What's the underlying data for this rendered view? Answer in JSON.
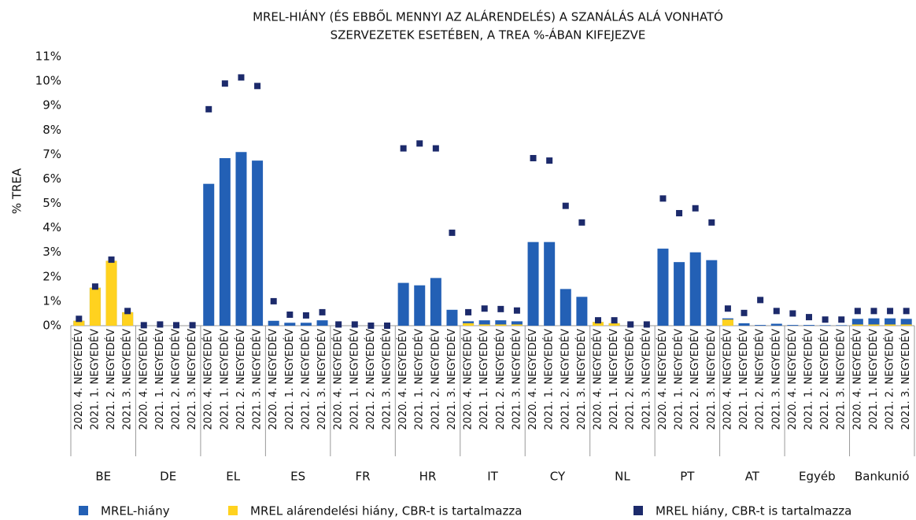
{
  "chart_data": {
    "type": "bar",
    "title": [
      "MREL-HIÁNY (ÉS EBBŐL MENNYI AZ ALÁRENDELÉS) A SZANÁLÁS ALÁ VONHATÓ",
      "SZERVEZETEK ESETÉBEN, A TREA %-ÁBAN KIFEJEZVE"
    ],
    "ylabel": "% TREA",
    "groups": [
      "BE",
      "DE",
      "EL",
      "ES",
      "FR",
      "HR",
      "IT",
      "CY",
      "NL",
      "PT",
      "AT",
      "Egyéb",
      "Bankunió"
    ],
    "categories": [
      "2020. 4. NEGYEDÉV",
      "2021. 1. NEGYEDÉV",
      "2021. 2. NEGYEDÉV",
      "2021. 3. NEGYEDÉV",
      "2020. 4. NEGYEDÉV",
      "2021. 1. NEGYEDÉV",
      "2021. 2. NEGYEDÉV",
      "2021. 3. NEGYEDÉV",
      "2020. 4. NEGYEDÉV",
      "2021. 1. NEGYEDÉV",
      "2021. 2. NEGYEDÉV",
      "2021. 3. NEGYEDÉV",
      "2020. 4. NEGYEDÉV",
      "2021. 1. NEGYEDÉV",
      "2021. 2. NEGYEDÉV",
      "2021. 3. NEGYEDÉV",
      "2020. 4. NEGYEDÉV",
      "2021. 1. NEGYEDÉV",
      "2021. 2. NEGYEDÉV",
      "2021. 3. NEGYEDÉV",
      "2020. 4. NEGYEDÉV",
      "2021. 1. NEGYEDÉV",
      "2021. 2. NEGYEDÉV",
      "2021. 3. NEGYEDÉV",
      "2020. 4. NEGYEDÉV",
      "2021. 1. NEGYEDÉV",
      "2021. 2. NEGYEDÉV",
      "2021. 3. NEGYEDÉV",
      "2020. 4. NEGYEDÉV",
      "2021. 1. NEGYEDÉV",
      "2021. 2. NEGYEDÉV",
      "2021. 3. NEGYEDÉV",
      "2020. 4. NEGYEDÉV",
      "2021. 1. NEGYEDÉV",
      "2021. 2. NEGYEDÉV",
      "2021. 3. NEGYEDÉV",
      "2020. 4. NEGYEDÉV",
      "2021. 1. NEGYEDÉV",
      "2021. 2. NEGYEDÉV",
      "2021. 3. NEGYEDÉV",
      "2020. 4. NEGYEDÉV",
      "2021. 1. NEGYEDÉV",
      "2021. 2. NEGYEDÉV",
      "2021. 3. NEGYEDÉV",
      "2020. 4. NEGYEDÉV",
      "2021. 1. NEGYEDÉV",
      "2021. 2. NEGYEDÉV",
      "2021. 3. NEGYEDÉV",
      "2020. 4. NEGYEDÉV",
      "2021. 1. NEGYEDÉV",
      "2021. 2. NEGYEDÉV",
      "2021. 3. NEGYEDÉV"
    ],
    "series": [
      {
        "name": "MREL-hiány",
        "color": "#2360b5",
        "mark": "bar",
        "values": [
          0.2,
          1.55,
          2.65,
          0.55,
          0,
          0,
          0,
          0,
          5.8,
          6.85,
          7.1,
          6.75,
          0.2,
          0.12,
          0.12,
          0.22,
          0,
          0,
          0,
          0,
          1.75,
          1.65,
          1.95,
          0.65,
          0.18,
          0.22,
          0.22,
          0.18,
          3.42,
          3.42,
          1.5,
          1.18,
          0.15,
          0.1,
          0,
          0,
          3.15,
          2.6,
          3.0,
          2.68,
          0.3,
          0.1,
          0.03,
          0.08,
          0.03,
          0.03,
          0.02,
          0.02,
          0.28,
          0.3,
          0.3,
          0.28
        ]
      },
      {
        "name": "MREL alárendelési hiány, CBR-t is tartalmazza",
        "color": "#ffd21f",
        "mark": "bar",
        "values": [
          0.2,
          1.55,
          2.65,
          0.55,
          0,
          0,
          0,
          0,
          0,
          0,
          0,
          0,
          0,
          0,
          0,
          0,
          0,
          0,
          0,
          0,
          0,
          0,
          0,
          0,
          0.1,
          0.05,
          0.05,
          0.05,
          0,
          0,
          0,
          0,
          0.15,
          0.1,
          0,
          0,
          0,
          0,
          0,
          0,
          0.25,
          0,
          0,
          0,
          0,
          0,
          0,
          0,
          0.05,
          0.05,
          0.05,
          0.05
        ]
      },
      {
        "name": "MREL hiány, CBR-t is tartalmazza",
        "color": "#1c2a6b",
        "mark": "square",
        "values": [
          0.28,
          1.6,
          2.7,
          0.6,
          0.02,
          0.05,
          0.02,
          0.02,
          8.85,
          9.9,
          10.15,
          9.8,
          1.0,
          0.45,
          0.42,
          0.55,
          0.05,
          0.05,
          0,
          0,
          7.25,
          7.45,
          7.25,
          3.8,
          0.55,
          0.7,
          0.68,
          0.62,
          6.85,
          6.75,
          4.9,
          4.22,
          0.22,
          0.22,
          0.05,
          0.05,
          5.2,
          4.6,
          4.8,
          4.22,
          0.7,
          0.52,
          1.05,
          0.6,
          0.5,
          0.35,
          0.25,
          0.25,
          0.6,
          0.6,
          0.6,
          0.6
        ]
      }
    ],
    "ylim": [
      0,
      11
    ],
    "yticks": [
      {
        "value": 0,
        "label": "0%"
      },
      {
        "value": 1,
        "label": "1%"
      },
      {
        "value": 2,
        "label": "2%"
      },
      {
        "value": 3,
        "label": "3%"
      },
      {
        "value": 4,
        "label": "4%"
      },
      {
        "value": 5,
        "label": "5%"
      },
      {
        "value": 6,
        "label": "6%"
      },
      {
        "value": 7,
        "label": "7%"
      },
      {
        "value": 8,
        "label": "8%"
      },
      {
        "value": 9,
        "label": "9%"
      },
      {
        "value": 10,
        "label": "10%"
      },
      {
        "value": 11,
        "label": "11%"
      }
    ],
    "grid": false,
    "legend": "bottom"
  }
}
